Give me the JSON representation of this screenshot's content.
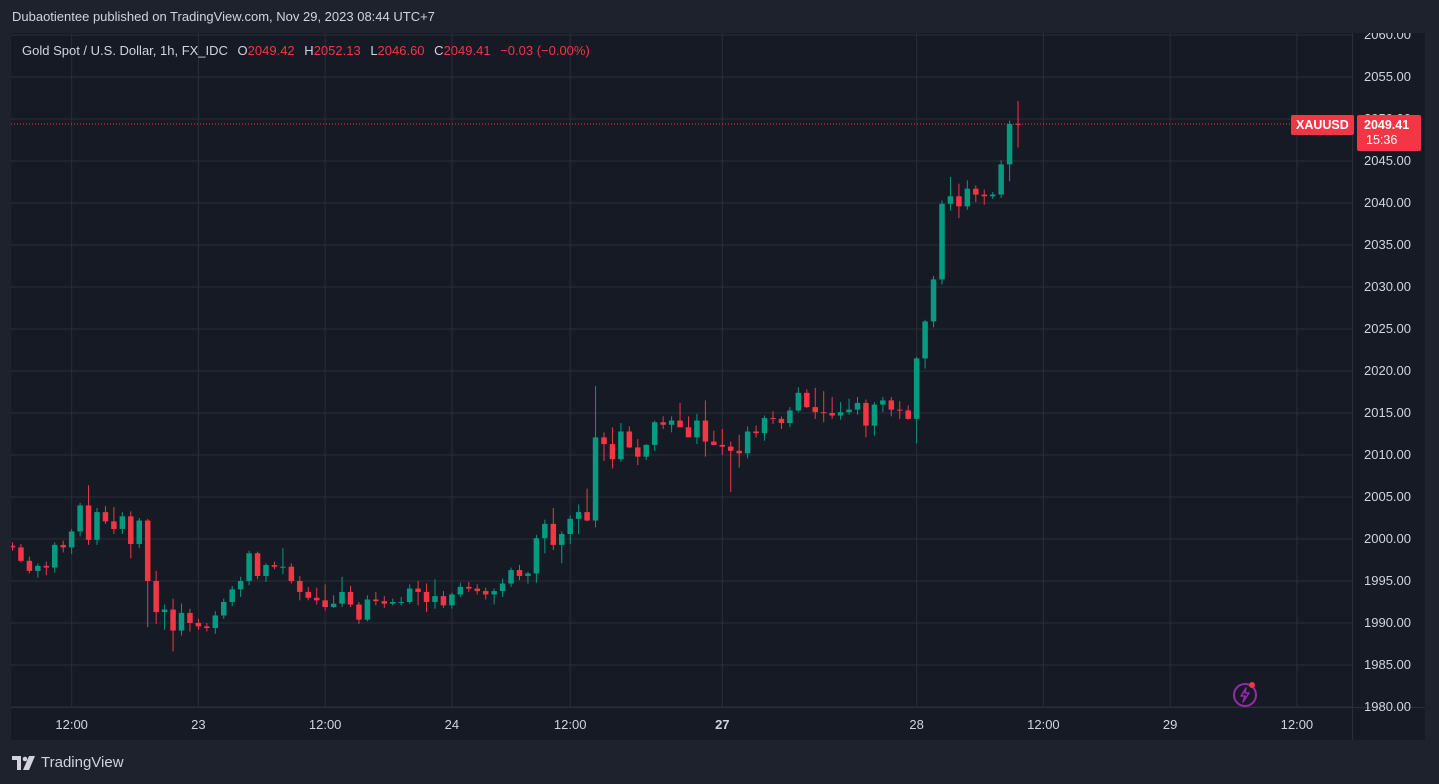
{
  "header": {
    "publish_text": "Dubaotientee published on TradingView.com, Nov 29, 2023 08:44 UTC+7"
  },
  "legend": {
    "symbol": "Gold Spot / U.S. Dollar, 1h, FX_IDC",
    "o_label": "O",
    "o_value": "2049.42",
    "h_label": "H",
    "h_value": "2052.13",
    "l_label": "L",
    "l_value": "2046.60",
    "c_label": "C",
    "c_value": "2049.41",
    "change": "−0.03 (−0.00%)"
  },
  "price_tag": {
    "symbol": "XAUUSD",
    "price": "2049.41",
    "countdown": "15:36"
  },
  "footer": {
    "brand": "TradingView"
  },
  "colors": {
    "up": "#089981",
    "down": "#f23645",
    "grid": "#2a2e39",
    "axis_text": "#d1d4dc",
    "background": "#161a25",
    "frame": "#1e222d"
  },
  "icons": {
    "logo": "tradingview-logo-icon",
    "flash": "lightning-icon"
  },
  "chart_data": {
    "type": "candlestick",
    "y_axis_labels": [
      "2060.00",
      "2055.00",
      "2050.00",
      "2045.00",
      "2040.00",
      "2035.00",
      "2030.00",
      "2025.00",
      "2020.00",
      "2015.00",
      "2010.00",
      "2005.00",
      "2000.00",
      "1995.00",
      "1990.00",
      "1985.00",
      "1980.00"
    ],
    "y_tick_values": [
      2060,
      2055,
      2050,
      2045,
      2040,
      2035,
      2030,
      2025,
      2020,
      2015,
      2010,
      2005,
      2000,
      1995,
      1990,
      1985,
      1980
    ],
    "ylim": [
      1980,
      2060
    ],
    "x_axis_labels": [
      {
        "label": "12:00",
        "bar": 7,
        "bold": false
      },
      {
        "label": "23",
        "bar": 22,
        "bold": false
      },
      {
        "label": "12:00",
        "bar": 37,
        "bold": false
      },
      {
        "label": "24",
        "bar": 52,
        "bold": false
      },
      {
        "label": "12:00",
        "bar": 66,
        "bold": false
      },
      {
        "label": "27",
        "bar": 84,
        "bold": true
      },
      {
        "label": "28",
        "bar": 107,
        "bold": false
      },
      {
        "label": "12:00",
        "bar": 122,
        "bold": false
      },
      {
        "label": "29",
        "bar": 137,
        "bold": false
      },
      {
        "label": "12:00",
        "bar": 152,
        "bold": false
      }
    ],
    "last_price": 2049.41,
    "ohlc": [
      [
        1999.2,
        1999.6,
        1998.6,
        1999.0
      ],
      [
        1999.0,
        1999.4,
        1997.2,
        1997.4
      ],
      [
        1997.4,
        1997.9,
        1995.9,
        1996.2
      ],
      [
        1996.2,
        1997.1,
        1995.4,
        1996.8
      ],
      [
        1996.8,
        1997.3,
        1995.7,
        1996.6
      ],
      [
        1996.6,
        1999.6,
        1996.0,
        1999.3
      ],
      [
        1999.3,
        1999.8,
        1998.4,
        1999.0
      ],
      [
        1999.0,
        2001.2,
        1998.2,
        2000.9
      ],
      [
        2000.9,
        2004.3,
        2000.3,
        2004.0
      ],
      [
        2004.0,
        2006.4,
        1999.3,
        1999.9
      ],
      [
        1999.9,
        2003.7,
        1999.3,
        2003.2
      ],
      [
        2003.2,
        2003.9,
        2001.8,
        2002.1
      ],
      [
        2002.1,
        2003.8,
        2000.6,
        2001.2
      ],
      [
        2001.2,
        2003.2,
        2000.6,
        2002.7
      ],
      [
        2002.7,
        2003.3,
        1997.7,
        1999.4
      ],
      [
        1999.4,
        2002.5,
        1998.9,
        2002.2
      ],
      [
        2002.2,
        2002.4,
        1989.5,
        1995.0
      ],
      [
        1995.0,
        1996.2,
        1989.9,
        1991.3
      ],
      [
        1991.3,
        1992.2,
        1989.2,
        1991.6
      ],
      [
        1991.6,
        1992.9,
        1986.6,
        1989.1
      ],
      [
        1989.1,
        1992.3,
        1988.5,
        1991.2
      ],
      [
        1991.2,
        1991.7,
        1989.0,
        1990.0
      ],
      [
        1990.0,
        1990.5,
        1989.2,
        1989.6
      ],
      [
        1989.6,
        1990.0,
        1989.0,
        1989.4
      ],
      [
        1989.4,
        1991.4,
        1988.7,
        1990.9
      ],
      [
        1990.9,
        1992.9,
        1990.5,
        1992.5
      ],
      [
        1992.5,
        1994.4,
        1992.0,
        1994.0
      ],
      [
        1994.0,
        1995.5,
        1993.1,
        1995.0
      ],
      [
        1995.0,
        1998.6,
        1994.5,
        1998.3
      ],
      [
        1998.3,
        1998.5,
        1995.2,
        1995.6
      ],
      [
        1995.6,
        1997.1,
        1994.9,
        1996.9
      ],
      [
        1996.9,
        1997.3,
        1996.4,
        1996.7
      ],
      [
        1996.7,
        1998.9,
        1995.8,
        1996.7
      ],
      [
        1996.7,
        1997.1,
        1994.7,
        1995.0
      ],
      [
        1995.0,
        1995.6,
        1992.7,
        1993.7
      ],
      [
        1993.7,
        1994.3,
        1992.7,
        1993.0
      ],
      [
        1993.0,
        1994.2,
        1992.2,
        1992.7
      ],
      [
        1992.7,
        1994.6,
        1991.5,
        1991.9
      ],
      [
        1991.9,
        1993.3,
        1991.8,
        1992.3
      ],
      [
        1992.3,
        1995.5,
        1991.9,
        1993.7
      ],
      [
        1993.7,
        1994.4,
        1991.9,
        1992.2
      ],
      [
        1992.2,
        1992.5,
        1989.9,
        1990.4
      ],
      [
        1990.4,
        1993.3,
        1990.2,
        1992.8
      ],
      [
        1992.8,
        1993.7,
        1992.1,
        1992.6
      ],
      [
        1992.6,
        1993.2,
        1991.8,
        1992.3
      ],
      [
        1992.3,
        1992.9,
        1992.1,
        1992.5
      ],
      [
        1992.5,
        1993.1,
        1992.1,
        1992.5
      ],
      [
        1992.5,
        1994.6,
        1992.3,
        1994.1
      ],
      [
        1994.1,
        1995.0,
        1992.1,
        1993.7
      ],
      [
        1993.7,
        1994.7,
        1991.3,
        1992.5
      ],
      [
        1992.5,
        1995.2,
        1991.7,
        1993.2
      ],
      [
        1993.2,
        1993.8,
        1991.8,
        1992.1
      ],
      [
        1992.1,
        1993.6,
        1991.7,
        1993.4
      ],
      [
        1993.4,
        1994.8,
        1993.1,
        1994.3
      ],
      [
        1994.3,
        1994.9,
        1993.7,
        1994.1
      ],
      [
        1994.1,
        1994.6,
        1993.4,
        1993.8
      ],
      [
        1993.8,
        1994.2,
        1992.8,
        1993.4
      ],
      [
        1993.4,
        1994.1,
        1992.2,
        1993.8
      ],
      [
        1993.8,
        1995.3,
        1993.1,
        1994.7
      ],
      [
        1994.7,
        1996.6,
        1994.3,
        1996.3
      ],
      [
        1996.3,
        1996.9,
        1995.1,
        1995.6
      ],
      [
        1995.6,
        1996.1,
        1994.7,
        1995.9
      ],
      [
        1995.9,
        2000.5,
        1994.8,
        2000.1
      ],
      [
        2000.1,
        2002.3,
        1998.3,
        2001.8
      ],
      [
        2001.8,
        2003.7,
        1998.7,
        1999.3
      ],
      [
        1999.3,
        2000.9,
        1997.1,
        2000.6
      ],
      [
        2000.6,
        2002.8,
        1999.4,
        2002.4
      ],
      [
        2002.4,
        2004.1,
        2000.6,
        2003.2
      ],
      [
        2003.2,
        2006.0,
        2002.1,
        2002.2
      ],
      [
        2002.2,
        2018.2,
        2001.4,
        2012.1
      ],
      [
        2012.1,
        2012.7,
        2009.3,
        2011.3
      ],
      [
        2011.3,
        2013.3,
        2008.4,
        2009.5
      ],
      [
        2009.5,
        2013.8,
        2009.2,
        2012.8
      ],
      [
        2012.8,
        2013.4,
        2010.8,
        2010.9
      ],
      [
        2010.9,
        2011.9,
        2008.8,
        2009.8
      ],
      [
        2009.8,
        2011.3,
        2009.4,
        2011.2
      ],
      [
        2011.2,
        2014.1,
        2010.5,
        2013.9
      ],
      [
        2013.9,
        2014.6,
        2013.1,
        2013.6
      ],
      [
        2013.6,
        2014.6,
        2012.7,
        2014.1
      ],
      [
        2014.1,
        2016.2,
        2013.6,
        2013.3
      ],
      [
        2013.3,
        2014.6,
        2012.2,
        2012.1
      ],
      [
        2012.1,
        2014.9,
        2011.3,
        2014.1
      ],
      [
        2014.1,
        2016.5,
        2009.8,
        2011.6
      ],
      [
        2011.6,
        2012.9,
        2011.3,
        2011.2
      ],
      [
        2011.2,
        2013.1,
        2010.0,
        2011.0
      ],
      [
        2011.0,
        2011.6,
        2005.6,
        2010.5
      ],
      [
        2010.5,
        2012.4,
        2008.5,
        2010.2
      ],
      [
        2010.2,
        2013.4,
        2009.6,
        2012.8
      ],
      [
        2012.8,
        2013.5,
        2012.1,
        2012.6
      ],
      [
        2012.6,
        2014.7,
        2011.7,
        2014.4
      ],
      [
        2014.4,
        2015.2,
        2013.7,
        2014.3
      ],
      [
        2014.3,
        2014.6,
        2013.1,
        2013.8
      ],
      [
        2013.8,
        2015.7,
        2013.3,
        2015.3
      ],
      [
        2015.3,
        2018.1,
        2015.1,
        2017.4
      ],
      [
        2017.4,
        2017.8,
        2015.6,
        2015.7
      ],
      [
        2015.7,
        2018.0,
        2014.3,
        2015.1
      ],
      [
        2015.1,
        2017.6,
        2013.9,
        2015.0
      ],
      [
        2015.0,
        2016.9,
        2014.3,
        2014.7
      ],
      [
        2014.7,
        2016.3,
        2014.2,
        2015.1
      ],
      [
        2015.1,
        2016.7,
        2014.8,
        2015.4
      ],
      [
        2015.4,
        2016.9,
        2014.8,
        2016.2
      ],
      [
        2016.2,
        2016.6,
        2012.1,
        2013.5
      ],
      [
        2013.5,
        2016.3,
        2012.3,
        2016.0
      ],
      [
        2016.0,
        2016.9,
        2015.1,
        2016.5
      ],
      [
        2016.5,
        2016.9,
        2014.6,
        2015.4
      ],
      [
        2015.4,
        2016.4,
        2014.3,
        2015.3
      ],
      [
        2015.3,
        2015.9,
        2014.2,
        2014.3
      ],
      [
        2014.3,
        2021.7,
        2011.4,
        2021.5
      ],
      [
        2021.5,
        2026.1,
        2020.3,
        2025.9
      ],
      [
        2025.9,
        2031.3,
        2025.2,
        2030.9
      ],
      [
        2030.9,
        2040.3,
        2030.3,
        2039.9
      ],
      [
        2039.9,
        2043.1,
        2039.1,
        2040.8
      ],
      [
        2040.8,
        2042.3,
        2038.2,
        2039.6
      ],
      [
        2039.6,
        2042.7,
        2039.2,
        2041.7
      ],
      [
        2041.7,
        2042.1,
        2040.1,
        2041.0
      ],
      [
        2041.0,
        2041.6,
        2039.8,
        2040.8
      ],
      [
        2040.8,
        2041.3,
        2040.5,
        2041.0
      ],
      [
        2041.0,
        2045.1,
        2040.6,
        2044.6
      ],
      [
        2044.6,
        2049.8,
        2042.6,
        2049.4
      ],
      [
        2049.42,
        2052.13,
        2046.6,
        2049.41
      ]
    ]
  }
}
